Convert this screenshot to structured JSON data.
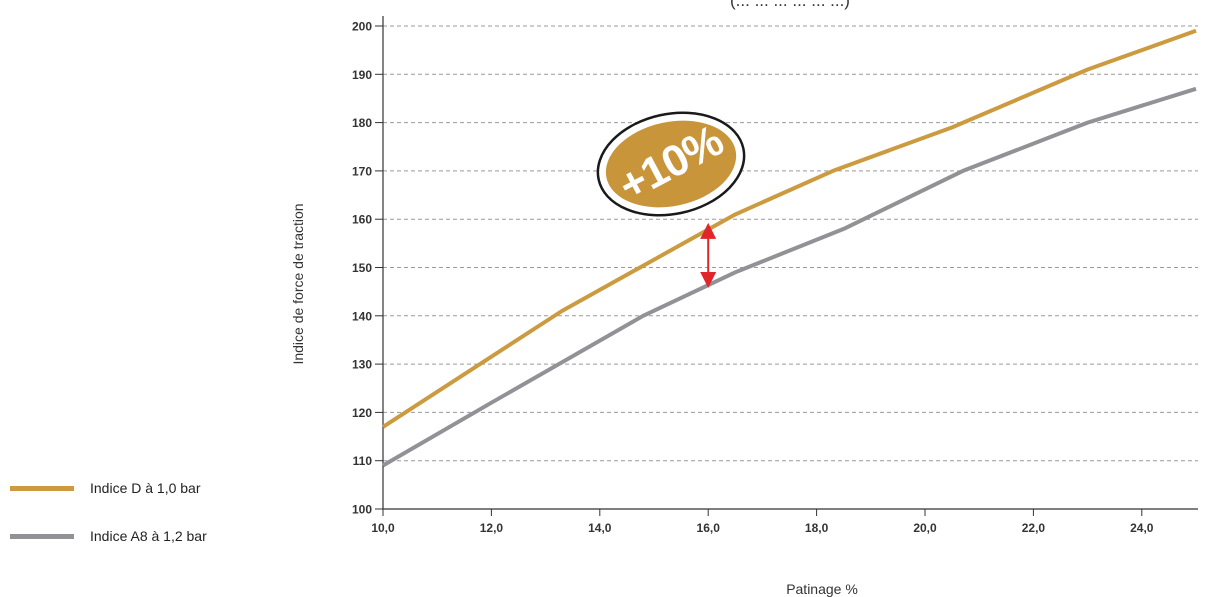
{
  "chart_data": {
    "type": "line",
    "title": "(... ... ... ... ... ...)",
    "xlabel": "Patinage %",
    "ylabel": "Indice de force de traction",
    "xlim": [
      10.0,
      25.0
    ],
    "ylim": [
      100,
      200
    ],
    "x_ticks": [
      "10,0",
      "12,0",
      "14,0",
      "16,0",
      "18,0",
      "20,0",
      "22,0",
      "24,0"
    ],
    "x_tick_values": [
      10,
      12,
      14,
      16,
      18,
      20,
      22,
      24
    ],
    "y_ticks": [
      "100",
      "110",
      "120",
      "130",
      "140",
      "150",
      "160",
      "170",
      "180",
      "190",
      "200"
    ],
    "y_tick_values": [
      100,
      110,
      120,
      130,
      140,
      150,
      160,
      170,
      180,
      190,
      200
    ],
    "grid": "horizontal-dashed",
    "legend_position": "left",
    "series": [
      {
        "name": "Indice D à 1,0 bar",
        "color": "#cc9a3f",
        "x": [
          10.0,
          13.3,
          16.5,
          18.3,
          20.5,
          23.0,
          25.0
        ],
        "y": [
          117,
          141,
          161,
          170,
          179,
          191,
          199
        ]
      },
      {
        "name": "Indice A8 à 1,2 bar",
        "color": "#919196",
        "x": [
          10.0,
          12.0,
          14.8,
          16.5,
          18.5,
          20.7,
          23.0,
          25.0
        ],
        "y": [
          109,
          122,
          140,
          149,
          158,
          170,
          180,
          187
        ]
      }
    ],
    "annotations": [
      {
        "text": "+10%",
        "color": "#c8953a"
      },
      {
        "type": "double-arrow",
        "x": 16.0,
        "y_from": 147,
        "y_to": 158,
        "color": "#e0262a"
      }
    ]
  }
}
